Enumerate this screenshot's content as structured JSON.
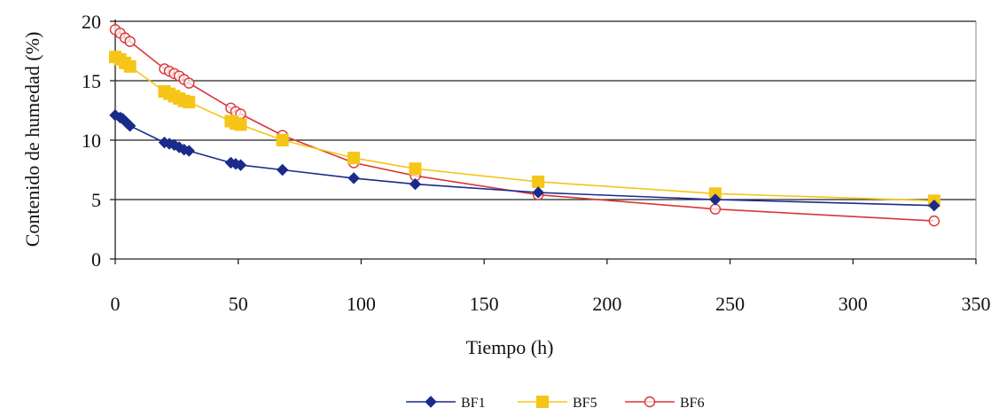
{
  "chart_data": {
    "type": "line",
    "xlabel": "Tiempo (h)",
    "ylabel": "Contenido de humedad (%)",
    "xlim": [
      0,
      350
    ],
    "ylim": [
      0,
      20
    ],
    "xticks": [
      0,
      50,
      100,
      150,
      200,
      250,
      300,
      350
    ],
    "yticks": [
      0,
      5,
      10,
      15,
      20
    ],
    "grid": "horizontal",
    "legend": "bottom-center",
    "series": [
      {
        "name": "BF1",
        "color": "#1a2b8c",
        "marker": "diamond",
        "points": [
          [
            0,
            12.1
          ],
          [
            2,
            11.9
          ],
          [
            3,
            11.8
          ],
          [
            4,
            11.6
          ],
          [
            5,
            11.4
          ],
          [
            6,
            11.2
          ],
          [
            20,
            9.8
          ],
          [
            22,
            9.7
          ],
          [
            24,
            9.6
          ],
          [
            26,
            9.4
          ],
          [
            28,
            9.2
          ],
          [
            30,
            9.1
          ],
          [
            47,
            8.1
          ],
          [
            49,
            8.0
          ],
          [
            51,
            7.9
          ],
          [
            68,
            7.5
          ],
          [
            97,
            6.8
          ],
          [
            122,
            6.3
          ],
          [
            172,
            5.6
          ],
          [
            244,
            5.0
          ],
          [
            333,
            4.5
          ]
        ]
      },
      {
        "name": "BF5",
        "color": "#f5c518",
        "marker": "square",
        "points": [
          [
            0,
            17.0
          ],
          [
            2,
            16.8
          ],
          [
            4,
            16.5
          ],
          [
            6,
            16.2
          ],
          [
            20,
            14.1
          ],
          [
            22,
            13.9
          ],
          [
            24,
            13.7
          ],
          [
            26,
            13.5
          ],
          [
            28,
            13.3
          ],
          [
            30,
            13.2
          ],
          [
            47,
            11.6
          ],
          [
            49,
            11.4
          ],
          [
            51,
            11.3
          ],
          [
            68,
            10.0
          ],
          [
            97,
            8.5
          ],
          [
            122,
            7.6
          ],
          [
            172,
            6.5
          ],
          [
            244,
            5.5
          ],
          [
            333,
            4.9
          ]
        ]
      },
      {
        "name": "BF6",
        "color": "#d93636",
        "marker": "circle",
        "points": [
          [
            0,
            19.3
          ],
          [
            2,
            19.0
          ],
          [
            4,
            18.6
          ],
          [
            6,
            18.3
          ],
          [
            20,
            16.0
          ],
          [
            22,
            15.8
          ],
          [
            24,
            15.6
          ],
          [
            26,
            15.4
          ],
          [
            28,
            15.1
          ],
          [
            30,
            14.8
          ],
          [
            47,
            12.7
          ],
          [
            49,
            12.4
          ],
          [
            51,
            12.2
          ],
          [
            68,
            10.4
          ],
          [
            97,
            8.1
          ],
          [
            122,
            7.0
          ],
          [
            172,
            5.4
          ],
          [
            244,
            4.2
          ],
          [
            333,
            3.2
          ]
        ]
      }
    ]
  }
}
